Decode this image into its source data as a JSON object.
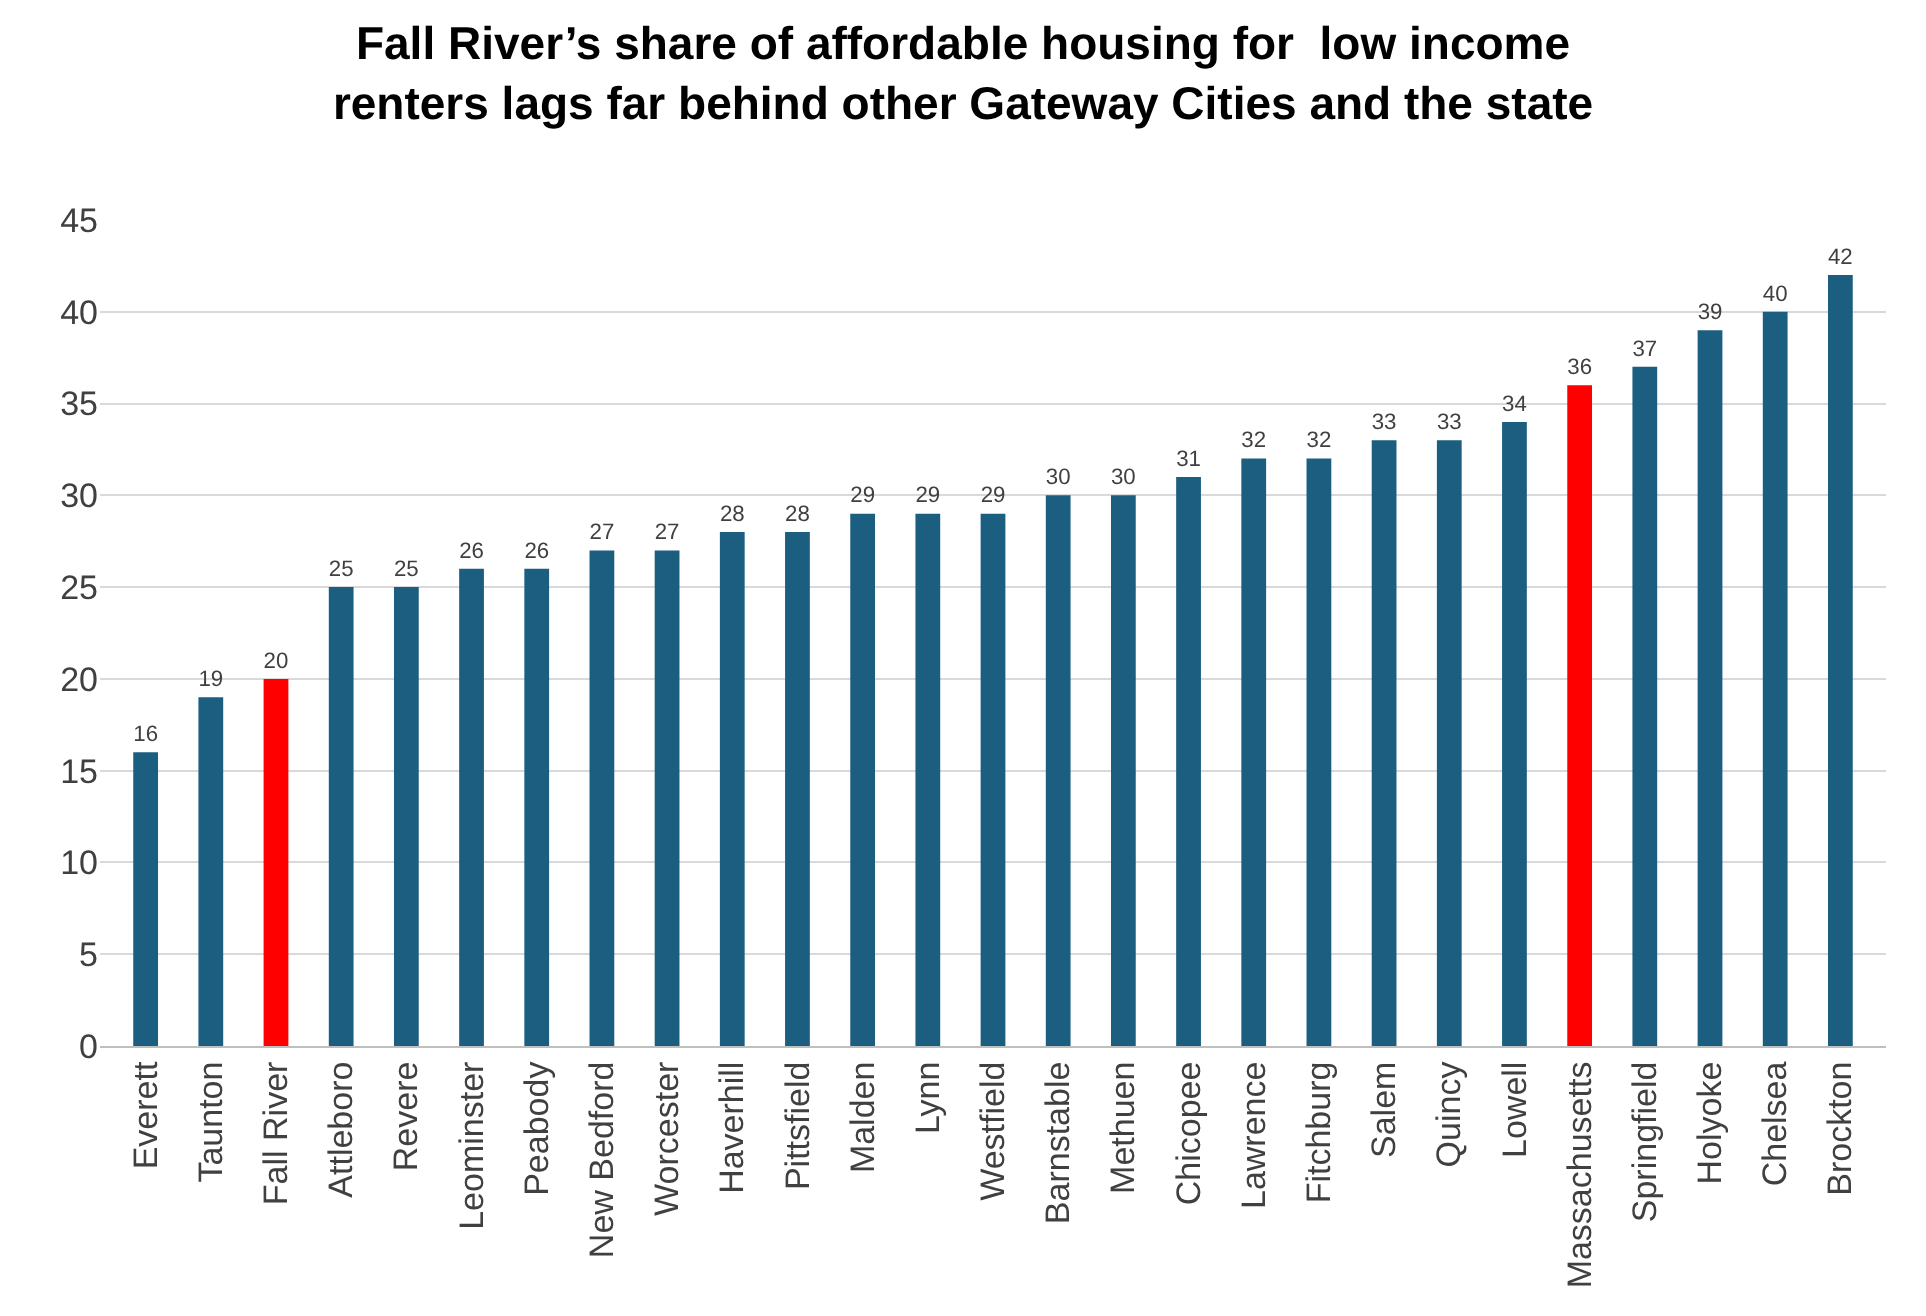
{
  "chart_data": {
    "type": "bar",
    "title": "Fall River’s share of affordable housing for  low income\nrenters lags far behind other Gateway Cities and the state",
    "categories": [
      "Everett",
      "Taunton",
      "Fall River",
      "Attleboro",
      "Revere",
      "Leominster",
      "Peabody",
      "New Bedford",
      "Worcester",
      "Haverhill",
      "Pittsfield",
      "Malden",
      "Lynn",
      "Westfield",
      "Barnstable",
      "Methuen",
      "Chicopee",
      "Lawrence",
      "Fitchburg",
      "Salem",
      "Quincy",
      "Lowell",
      "Massachusetts",
      "Springfield",
      "Holyoke",
      "Chelsea",
      "Brockton"
    ],
    "values": [
      16,
      19,
      20,
      25,
      25,
      26,
      26,
      27,
      27,
      28,
      28,
      29,
      29,
      29,
      30,
      30,
      31,
      32,
      32,
      33,
      33,
      34,
      36,
      37,
      39,
      40,
      42
    ],
    "colors": [
      "#1b5e80",
      "#1b5e80",
      "#ff0000",
      "#1b5e80",
      "#1b5e80",
      "#1b5e80",
      "#1b5e80",
      "#1b5e80",
      "#1b5e80",
      "#1b5e80",
      "#1b5e80",
      "#1b5e80",
      "#1b5e80",
      "#1b5e80",
      "#1b5e80",
      "#1b5e80",
      "#1b5e80",
      "#1b5e80",
      "#1b5e80",
      "#1b5e80",
      "#1b5e80",
      "#1b5e80",
      "#ff0000",
      "#1b5e80",
      "#1b5e80",
      "#1b5e80",
      "#1b5e80"
    ],
    "ylim": [
      0,
      45
    ],
    "yticks": [
      0,
      5,
      10,
      15,
      20,
      25,
      30,
      35,
      40,
      45
    ],
    "grid": "y",
    "data_labels": true,
    "legend": false
  }
}
